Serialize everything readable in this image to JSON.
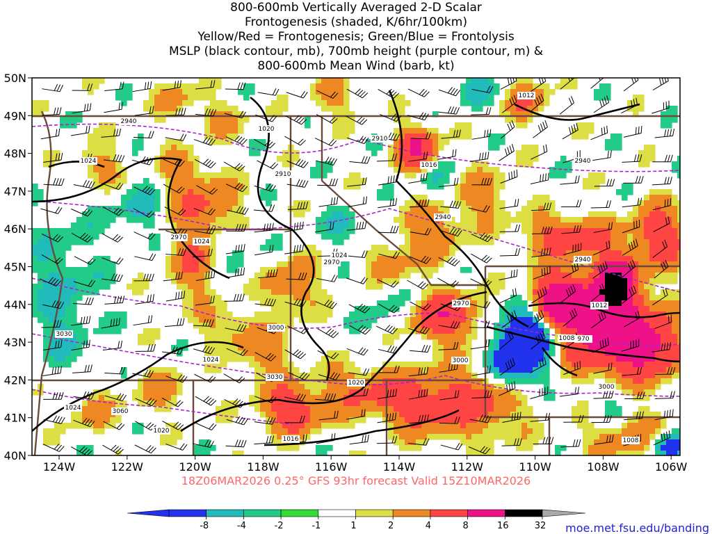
{
  "title_lines": [
    "800-600mb Vertically Averaged 2-D Scalar",
    "Frontogenesis (shaded, K/6hr/100km)",
    "Yellow/Red = Frontogenesis;  Green/Blue = Frontolysis",
    "MSLP (black contour, mb), 700mb height (purple contour, m) &",
    "800-600mb Mean Wind (barb, kt)"
  ],
  "lat_labels": [
    "50N",
    "49N",
    "48N",
    "47N",
    "46N",
    "45N",
    "44N",
    "43N",
    "42N",
    "41N",
    "40N"
  ],
  "lon_labels": [
    "124W",
    "122W",
    "120W",
    "118W",
    "116W",
    "114W",
    "112W",
    "110W",
    "108W",
    "106W"
  ],
  "valid_text": "18Z06MAR2026 0.25° GFS 93hr forecast Valid 15Z10MAR2026",
  "colorbar": {
    "labels": [
      "-8",
      "-4",
      "-2",
      "-1",
      "1",
      "2",
      "4",
      "8",
      "16",
      "32"
    ],
    "colors": [
      "#2233ee",
      "#22bbbb",
      "#22cc88",
      "#33dd33",
      "#ffffff",
      "#dddd44",
      "#ee8822",
      "#ff4444",
      "#ee1188",
      "#000000"
    ],
    "end_low_color": "#2233ee",
    "end_high_color": "#aaaaaa"
  },
  "credit": "moe.met.fsu.edu/banding",
  "mslp_labels": [
    "1012",
    "1020",
    "1024",
    "1024",
    "1024",
    "1024",
    "1016",
    "1012",
    "1008",
    "1020",
    "1024",
    "1020",
    "1016",
    "1030",
    "1008"
  ],
  "height_labels": [
    "2940",
    "2910",
    "2940",
    "2910",
    "2940",
    "2970",
    "2970",
    "2940",
    "2970",
    "3000",
    "3000",
    "3030",
    "3030",
    "3060",
    "970",
    "3000"
  ],
  "colors": {
    "mslp_contour": "#000000",
    "height_contour": "#aa22cc",
    "border": "#6b4a3a",
    "barb": "#000000"
  }
}
